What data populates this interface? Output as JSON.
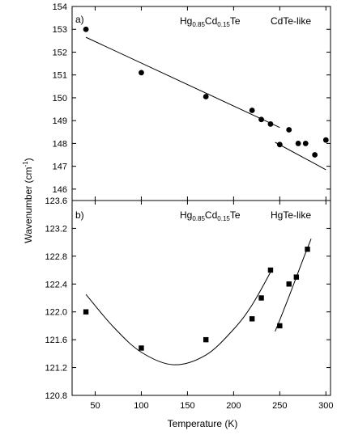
{
  "chart_data": [
    {
      "type": "scatter",
      "panel_label": "a)",
      "title_parts": {
        "base": "Hg",
        "sub1": "0.85",
        "mid": "Cd",
        "sub2": "0.15",
        "tail": "Te"
      },
      "mode_label": "CdTe-like",
      "ylabel": "Wavenumber (cm",
      "ylabel_sup": "-1",
      "ylabel_end": ")",
      "xlim": [
        25,
        305
      ],
      "ylim": [
        145.5,
        154
      ],
      "yticks": [
        "146",
        "147",
        "148",
        "149",
        "150",
        "151",
        "152",
        "153",
        "154"
      ],
      "marker": "circle",
      "points": [
        {
          "x": 40,
          "y": 153.0
        },
        {
          "x": 100,
          "y": 151.1
        },
        {
          "x": 170,
          "y": 150.05
        },
        {
          "x": 220,
          "y": 149.45
        },
        {
          "x": 230,
          "y": 149.05
        },
        {
          "x": 240,
          "y": 148.85
        },
        {
          "x": 250,
          "y": 147.95
        },
        {
          "x": 260,
          "y": 148.6
        },
        {
          "x": 270,
          "y": 148.0
        },
        {
          "x": 278,
          "y": 148.0
        },
        {
          "x": 288,
          "y": 147.5
        },
        {
          "x": 300,
          "y": 148.15
        }
      ],
      "fit_lines": [
        {
          "x": [
            40,
            250
          ],
          "y": [
            152.65,
            148.7
          ]
        },
        {
          "x": [
            245,
            300
          ],
          "y": [
            148.05,
            146.85
          ]
        }
      ]
    },
    {
      "type": "scatter",
      "panel_label": "b)",
      "title_parts": {
        "base": "Hg",
        "sub1": "0.85",
        "mid": "Cd",
        "sub2": "0.15",
        "tail": "Te"
      },
      "mode_label": "HgTe-like",
      "xlabel": "Temperature (K)",
      "xlim": [
        25,
        305
      ],
      "ylim": [
        120.8,
        123.6
      ],
      "xticks": [
        "50",
        "100",
        "150",
        "200",
        "250",
        "300"
      ],
      "yticks": [
        "120.8",
        "121.2",
        "121.6",
        "122.0",
        "122.4",
        "122.8",
        "123.2",
        "123.6"
      ],
      "marker": "square",
      "points": [
        {
          "x": 40,
          "y": 122.0
        },
        {
          "x": 100,
          "y": 121.48
        },
        {
          "x": 170,
          "y": 121.6
        },
        {
          "x": 220,
          "y": 121.9
        },
        {
          "x": 230,
          "y": 122.2
        },
        {
          "x": 240,
          "y": 122.6
        },
        {
          "x": 250,
          "y": 121.8
        },
        {
          "x": 260,
          "y": 122.4
        },
        {
          "x": 268,
          "y": 122.5
        },
        {
          "x": 280,
          "y": 122.9
        }
      ],
      "fit_curves": [
        {
          "x": [
            40,
            70,
            100,
            135,
            170,
            200,
            220,
            242
          ],
          "y": [
            122.25,
            121.78,
            121.42,
            121.24,
            121.38,
            121.75,
            122.1,
            122.62
          ]
        },
        {
          "x": [
            245,
            252,
            260,
            268,
            276,
            284
          ],
          "y": [
            121.72,
            121.95,
            122.22,
            122.5,
            122.78,
            123.05
          ]
        }
      ]
    }
  ]
}
